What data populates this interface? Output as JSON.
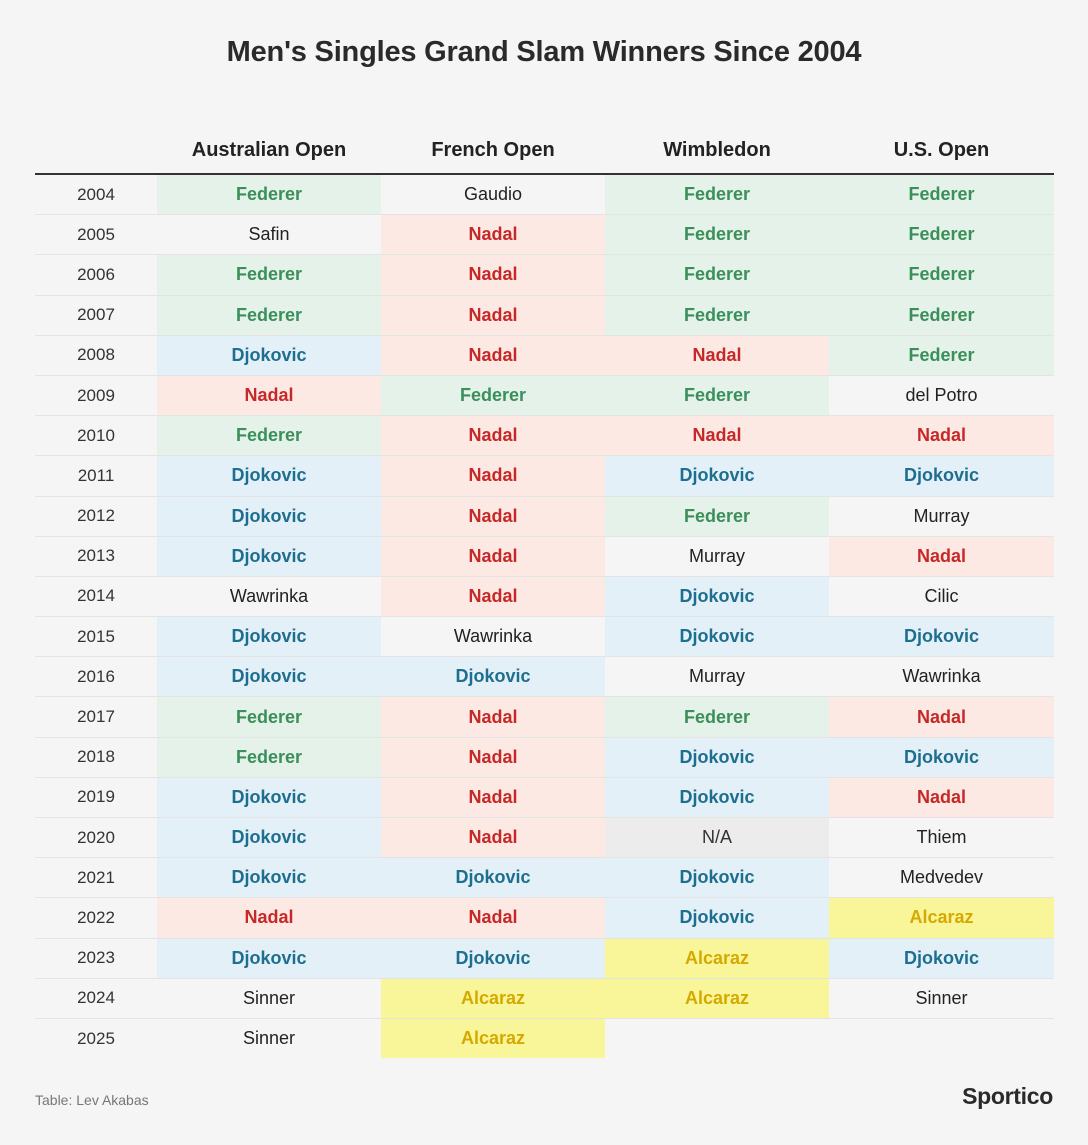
{
  "chart_data": {
    "type": "table",
    "title": "Men's Singles Grand Slam Winners Since 2004",
    "columns": [
      "",
      "Australian Open",
      "French Open",
      "Wimbledon",
      "U.S. Open"
    ],
    "rows": [
      {
        "year": "2004",
        "winners": [
          "Federer",
          "Gaudio",
          "Federer",
          "Federer"
        ]
      },
      {
        "year": "2005",
        "winners": [
          "Safin",
          "Nadal",
          "Federer",
          "Federer"
        ]
      },
      {
        "year": "2006",
        "winners": [
          "Federer",
          "Nadal",
          "Federer",
          "Federer"
        ]
      },
      {
        "year": "2007",
        "winners": [
          "Federer",
          "Nadal",
          "Federer",
          "Federer"
        ]
      },
      {
        "year": "2008",
        "winners": [
          "Djokovic",
          "Nadal",
          "Nadal",
          "Federer"
        ]
      },
      {
        "year": "2009",
        "winners": [
          "Nadal",
          "Federer",
          "Federer",
          "del Potro"
        ]
      },
      {
        "year": "2010",
        "winners": [
          "Federer",
          "Nadal",
          "Nadal",
          "Nadal"
        ]
      },
      {
        "year": "2011",
        "winners": [
          "Djokovic",
          "Nadal",
          "Djokovic",
          "Djokovic"
        ]
      },
      {
        "year": "2012",
        "winners": [
          "Djokovic",
          "Nadal",
          "Federer",
          "Murray"
        ]
      },
      {
        "year": "2013",
        "winners": [
          "Djokovic",
          "Nadal",
          "Murray",
          "Nadal"
        ]
      },
      {
        "year": "2014",
        "winners": [
          "Wawrinka",
          "Nadal",
          "Djokovic",
          "Cilic"
        ]
      },
      {
        "year": "2015",
        "winners": [
          "Djokovic",
          "Wawrinka",
          "Djokovic",
          "Djokovic"
        ]
      },
      {
        "year": "2016",
        "winners": [
          "Djokovic",
          "Djokovic",
          "Murray",
          "Wawrinka"
        ]
      },
      {
        "year": "2017",
        "winners": [
          "Federer",
          "Nadal",
          "Federer",
          "Nadal"
        ]
      },
      {
        "year": "2018",
        "winners": [
          "Federer",
          "Nadal",
          "Djokovic",
          "Djokovic"
        ]
      },
      {
        "year": "2019",
        "winners": [
          "Djokovic",
          "Nadal",
          "Djokovic",
          "Nadal"
        ]
      },
      {
        "year": "2020",
        "winners": [
          "Djokovic",
          "Nadal",
          "N/A",
          "Thiem"
        ]
      },
      {
        "year": "2021",
        "winners": [
          "Djokovic",
          "Djokovic",
          "Djokovic",
          "Medvedev"
        ]
      },
      {
        "year": "2022",
        "winners": [
          "Nadal",
          "Nadal",
          "Djokovic",
          "Alcaraz"
        ]
      },
      {
        "year": "2023",
        "winners": [
          "Djokovic",
          "Djokovic",
          "Alcaraz",
          "Djokovic"
        ]
      },
      {
        "year": "2024",
        "winners": [
          "Sinner",
          "Alcaraz",
          "Alcaraz",
          "Sinner"
        ]
      },
      {
        "year": "2025",
        "winners": [
          "Sinner",
          "Alcaraz",
          "",
          ""
        ]
      }
    ],
    "highlight_colors": {
      "Federer": {
        "bg": "#e5f2e9",
        "text": "#3a8f5a"
      },
      "Nadal": {
        "bg": "#fde9e3",
        "text": "#c62828"
      },
      "Djokovic": {
        "bg": "#e3f0f8",
        "text": "#1d6e8f"
      },
      "Alcaraz": {
        "bg": "#f9f69a",
        "text": "#d6a900"
      }
    }
  },
  "footer": {
    "credit": "Table: Lev Akabas",
    "brand": "Sportico"
  }
}
